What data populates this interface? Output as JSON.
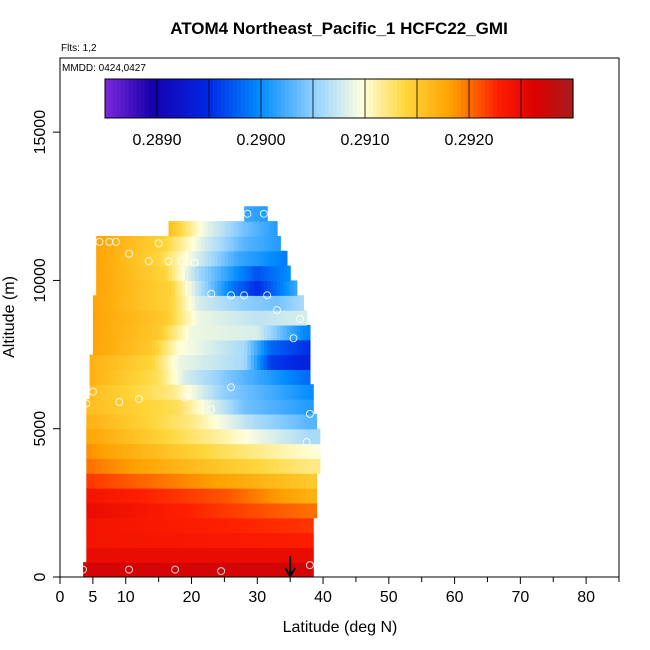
{
  "chart_data": {
    "type": "heatmap",
    "title": "ATOM4 Northeast_Pacific_1 HCFC22_GMI",
    "flights_note": "Flts: 1,2",
    "date_note": "MMDD: 0424,0427",
    "xlabel": "Latitude (deg N)",
    "ylabel": "Altitude (m)",
    "xlim": [
      0,
      85
    ],
    "ylim": [
      0,
      17500
    ],
    "x_ticks": [
      0,
      5,
      10,
      20,
      30,
      40,
      50,
      60,
      70,
      80
    ],
    "y_ticks": [
      0,
      5000,
      10000,
      15000
    ],
    "y_tick_labels": [
      "0",
      "5000",
      "10000",
      "15000"
    ],
    "colorbar": {
      "min": 0.2885,
      "max": 0.293,
      "ticks": [
        0.289,
        0.29,
        0.291,
        0.292
      ],
      "tick_labels": [
        "0.2890",
        "0.2900",
        "0.2910",
        "0.2920"
      ]
    },
    "arrow_marker": {
      "x": 35,
      "label": ""
    },
    "field_rows": [
      {
        "y0": 0,
        "y1": 500,
        "x0": 3.5,
        "x1": 38.5,
        "values": [
          [
            3.5,
            0.2927
          ],
          [
            38.5,
            0.2927
          ]
        ]
      },
      {
        "y0": 500,
        "y1": 1000,
        "x0": 4,
        "x1": 38.5,
        "values": [
          [
            4,
            0.2925
          ],
          [
            38.5,
            0.2925
          ]
        ]
      },
      {
        "y0": 1000,
        "y1": 1500,
        "x0": 4,
        "x1": 38.5,
        "values": [
          [
            4,
            0.2924
          ],
          [
            38.5,
            0.2923
          ]
        ]
      },
      {
        "y0": 1500,
        "y1": 2000,
        "x0": 4,
        "x1": 38.5,
        "values": [
          [
            4,
            0.2924
          ],
          [
            38.5,
            0.2922
          ]
        ]
      },
      {
        "y0": 2000,
        "y1": 2500,
        "x0": 4,
        "x1": 39,
        "values": [
          [
            4,
            0.2925
          ],
          [
            38,
            0.292
          ]
        ]
      },
      {
        "y0": 2500,
        "y1": 3000,
        "x0": 4,
        "x1": 39,
        "values": [
          [
            4,
            0.2924
          ],
          [
            25,
            0.2921
          ],
          [
            38,
            0.2917
          ]
        ]
      },
      {
        "y0": 3000,
        "y1": 3500,
        "x0": 4,
        "x1": 39,
        "values": [
          [
            4,
            0.2922
          ],
          [
            25,
            0.2918
          ],
          [
            38,
            0.2915
          ]
        ]
      },
      {
        "y0": 3500,
        "y1": 4000,
        "x0": 4,
        "x1": 39.5,
        "values": [
          [
            4,
            0.292
          ],
          [
            25,
            0.2915
          ],
          [
            38,
            0.2912
          ]
        ]
      },
      {
        "y0": 4000,
        "y1": 4500,
        "x0": 4,
        "x1": 39.5,
        "values": [
          [
            4,
            0.2919
          ],
          [
            25,
            0.2913
          ],
          [
            38,
            0.291
          ]
        ]
      },
      {
        "y0": 4500,
        "y1": 5000,
        "x0": 4,
        "x1": 39.5,
        "values": [
          [
            4,
            0.2918
          ],
          [
            25,
            0.2911
          ],
          [
            38,
            0.2906
          ]
        ]
      },
      {
        "y0": 5000,
        "y1": 5500,
        "x0": 4,
        "x1": 39,
        "values": [
          [
            4,
            0.2917
          ],
          [
            20,
            0.2912
          ],
          [
            30,
            0.2906
          ],
          [
            38,
            0.2903
          ]
        ]
      },
      {
        "y0": 5500,
        "y1": 6000,
        "x0": 4,
        "x1": 38.5,
        "values": [
          [
            4,
            0.2916
          ],
          [
            18,
            0.2913
          ],
          [
            28,
            0.2904
          ],
          [
            38,
            0.2901
          ]
        ]
      },
      {
        "y0": 6000,
        "y1": 6500,
        "x0": 4.5,
        "x1": 38.5,
        "values": [
          [
            4.5,
            0.2916
          ],
          [
            17,
            0.2912
          ],
          [
            25,
            0.2905
          ],
          [
            38,
            0.29
          ]
        ]
      },
      {
        "y0": 6500,
        "y1": 7000,
        "x0": 4.5,
        "x1": 38,
        "values": [
          [
            4.5,
            0.2917
          ],
          [
            15,
            0.2913
          ],
          [
            19,
            0.2908
          ],
          [
            28,
            0.2903
          ],
          [
            38,
            0.2898
          ]
        ]
      },
      {
        "y0": 7000,
        "y1": 7500,
        "x0": 4.5,
        "x1": 38,
        "values": [
          [
            4.5,
            0.2917
          ],
          [
            14,
            0.2914
          ],
          [
            18,
            0.2909
          ],
          [
            28,
            0.2906
          ],
          [
            32,
            0.2896
          ],
          [
            38,
            0.2894
          ]
        ]
      },
      {
        "y0": 7500,
        "y1": 8000,
        "x0": 5,
        "x1": 38,
        "values": [
          [
            5,
            0.2918
          ],
          [
            14,
            0.2915
          ],
          [
            18,
            0.291
          ],
          [
            28,
            0.2906
          ],
          [
            32,
            0.2898
          ],
          [
            38,
            0.2895
          ]
        ]
      },
      {
        "y0": 8000,
        "y1": 8500,
        "x0": 5,
        "x1": 38,
        "values": [
          [
            5,
            0.2918
          ],
          [
            15,
            0.2915
          ],
          [
            20,
            0.2909
          ],
          [
            30,
            0.2908
          ],
          [
            35,
            0.2902
          ],
          [
            38,
            0.2899
          ]
        ]
      },
      {
        "y0": 8500,
        "y1": 9000,
        "x0": 5,
        "x1": 37.5,
        "values": [
          [
            5,
            0.2918
          ],
          [
            16,
            0.2915
          ],
          [
            21,
            0.2909
          ],
          [
            30,
            0.2907
          ],
          [
            37.5,
            0.2908
          ]
        ]
      },
      {
        "y0": 9000,
        "y1": 9500,
        "x0": 5,
        "x1": 37,
        "values": [
          [
            5,
            0.2918
          ],
          [
            17,
            0.2914
          ],
          [
            21,
            0.2908
          ],
          [
            28,
            0.2905
          ],
          [
            33,
            0.2904
          ],
          [
            37,
            0.2906
          ]
        ]
      },
      {
        "y0": 9500,
        "y1": 10000,
        "x0": 5.5,
        "x1": 36,
        "values": [
          [
            5.5,
            0.2918
          ],
          [
            17,
            0.2914
          ],
          [
            21,
            0.2907
          ],
          [
            26,
            0.2899
          ],
          [
            30,
            0.2895
          ],
          [
            36,
            0.2902
          ]
        ]
      },
      {
        "y0": 10000,
        "y1": 10500,
        "x0": 5.5,
        "x1": 35,
        "values": [
          [
            5.5,
            0.2918
          ],
          [
            16,
            0.2914
          ],
          [
            21,
            0.2906
          ],
          [
            26,
            0.2901
          ],
          [
            30,
            0.2897
          ],
          [
            35,
            0.29
          ]
        ]
      },
      {
        "y0": 10500,
        "y1": 11000,
        "x0": 5.5,
        "x1": 34.5,
        "values": [
          [
            5.5,
            0.2918
          ],
          [
            15,
            0.2914
          ],
          [
            20,
            0.2909
          ],
          [
            27,
            0.2902
          ],
          [
            34.5,
            0.2899
          ]
        ]
      },
      {
        "y0": 11000,
        "y1": 11500,
        "x0": 5.5,
        "x1": 33.5,
        "values": [
          [
            5.5,
            0.2918
          ],
          [
            16,
            0.2914
          ],
          [
            22,
            0.2908
          ],
          [
            28,
            0.2903
          ],
          [
            33.5,
            0.2901
          ]
        ]
      },
      {
        "y0": 11500,
        "y1": 12000,
        "x0": 16.5,
        "x1": 33,
        "values": [
          [
            16.5,
            0.2916
          ],
          [
            22,
            0.2909
          ],
          [
            28,
            0.2904
          ],
          [
            33,
            0.2901
          ]
        ]
      },
      {
        "y0": 12000,
        "y1": 12500,
        "x0": 28,
        "x1": 31.5,
        "values": [
          [
            28,
            0.2902
          ],
          [
            31.5,
            0.2901
          ]
        ]
      }
    ],
    "points": [
      [
        3.5,
        250
      ],
      [
        10.5,
        250
      ],
      [
        17.5,
        250
      ],
      [
        24.5,
        200
      ],
      [
        38,
        400
      ],
      [
        4,
        5850
      ],
      [
        5,
        6250
      ],
      [
        9,
        5900
      ],
      [
        12,
        6000
      ],
      [
        19,
        6050
      ],
      [
        23,
        5650
      ],
      [
        26,
        6400
      ],
      [
        38,
        5500
      ],
      [
        37.5,
        4550
      ],
      [
        39.5,
        4300
      ],
      [
        6,
        11300
      ],
      [
        7.5,
        11300
      ],
      [
        8.5,
        11300
      ],
      [
        10.5,
        10900
      ],
      [
        13.5,
        10650
      ],
      [
        15,
        11250
      ],
      [
        16.5,
        10650
      ],
      [
        18.5,
        10650
      ],
      [
        20.5,
        10600
      ],
      [
        23,
        9550
      ],
      [
        26,
        9500
      ],
      [
        28,
        9500
      ],
      [
        31.5,
        9500
      ],
      [
        33,
        9000
      ],
      [
        36.5,
        8700
      ],
      [
        35.5,
        8050
      ],
      [
        28.5,
        12250
      ],
      [
        31,
        12250
      ]
    ]
  }
}
